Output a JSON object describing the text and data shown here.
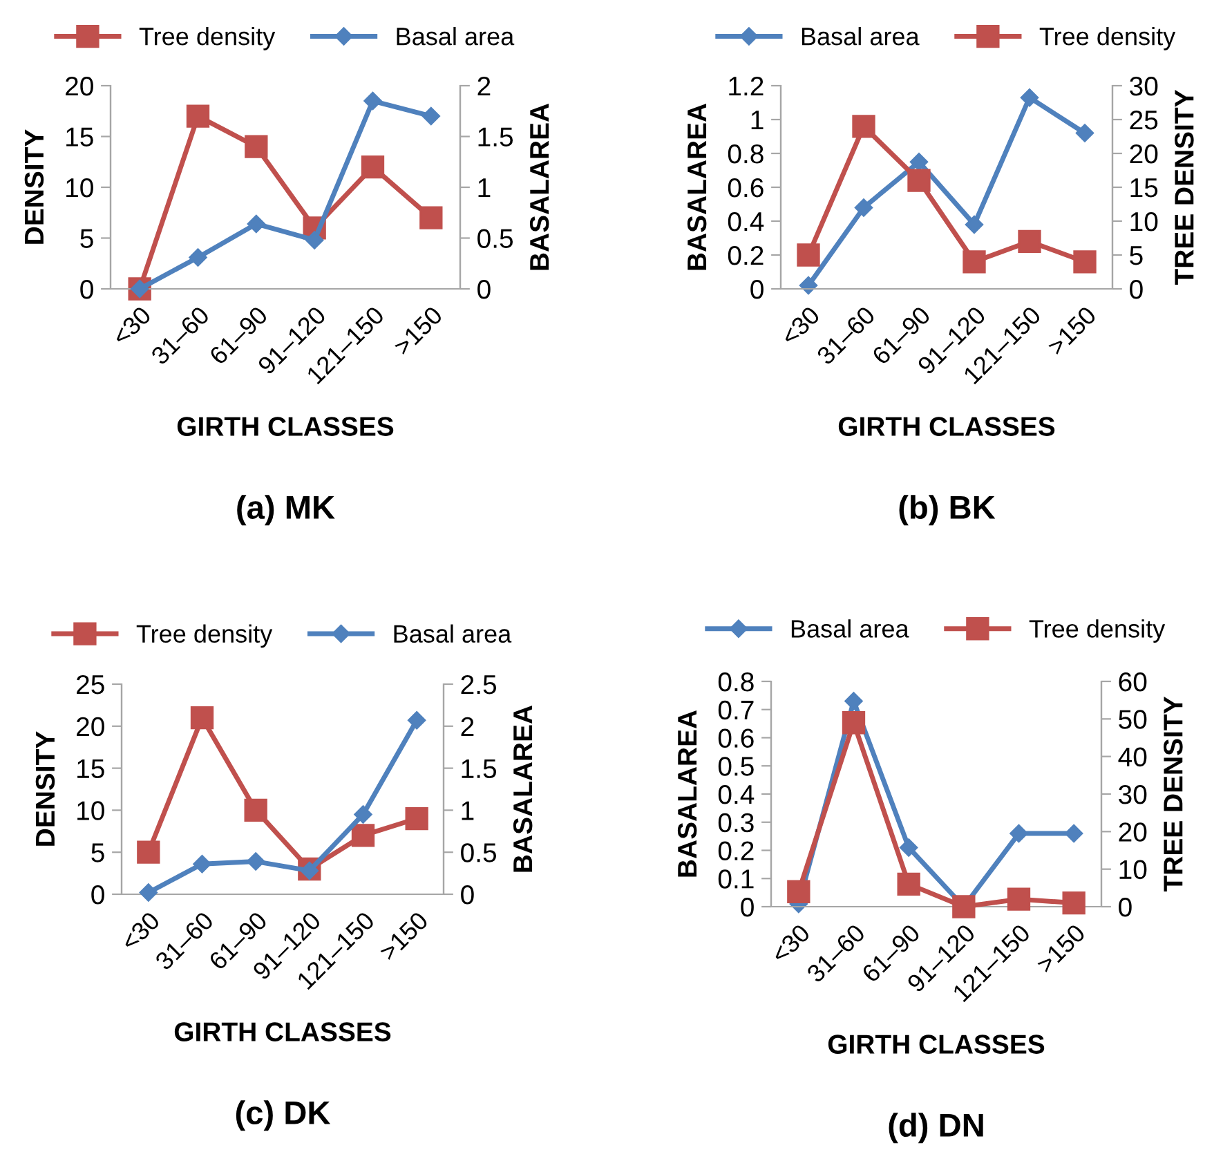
{
  "chart_data": [
    {
      "type": "line",
      "title": "(a) MK",
      "xlabel": "GIRTH CLASSES",
      "ylabel": "DENSITY",
      "y2label": "BASALAREA",
      "categories": [
        "<30",
        "31–60",
        "61–90",
        "91–120",
        "121–150",
        ">150"
      ],
      "ylim": [
        0,
        20
      ],
      "yticks": [
        0,
        5,
        10,
        15,
        20
      ],
      "y2lim": [
        0,
        2
      ],
      "y2ticks": [
        0,
        0.5,
        1,
        1.5,
        2
      ],
      "legend": "top",
      "grid": false,
      "series": [
        {
          "name": "Tree density",
          "color": "#c0504d",
          "marker": "square",
          "values": [
            0,
            17,
            14,
            6,
            12,
            7
          ]
        },
        {
          "name": "Basal area",
          "color": "#4f81bd",
          "marker": "diamond",
          "axis": "y2",
          "values": [
            0,
            0.31,
            0.64,
            0.48,
            1.85,
            1.7
          ]
        }
      ]
    },
    {
      "type": "line",
      "title": "(b) BK",
      "xlabel": "GIRTH CLASSES",
      "ylabel": "BASALAREA",
      "y2label": "TREE DENSITY",
      "categories": [
        "<30",
        "31–60",
        "61–90",
        "91–120",
        "121–150",
        ">150"
      ],
      "ylim": [
        0,
        1.2
      ],
      "yticks": [
        0,
        0.2,
        0.4,
        0.6,
        0.8,
        1,
        1.2
      ],
      "y2lim": [
        0,
        30
      ],
      "y2ticks": [
        0,
        5,
        10,
        15,
        20,
        25,
        30
      ],
      "legend": "top",
      "grid": false,
      "series": [
        {
          "name": "Basal area",
          "color": "#4f81bd",
          "marker": "diamond",
          "values": [
            0.02,
            0.48,
            0.75,
            0.38,
            1.13,
            0.92
          ]
        },
        {
          "name": "Tree density",
          "color": "#c0504d",
          "marker": "square",
          "axis": "y2",
          "values": [
            5,
            24,
            16,
            4,
            7,
            4
          ]
        }
      ]
    },
    {
      "type": "line",
      "title": "(c) DK",
      "xlabel": "GIRTH CLASSES",
      "ylabel": "DENSITY",
      "y2label": "BASALAREA",
      "categories": [
        "<30",
        "31–60",
        "61–90",
        "91–120",
        "121–150",
        ">150"
      ],
      "ylim": [
        0,
        25
      ],
      "yticks": [
        0,
        5,
        10,
        15,
        20,
        25
      ],
      "y2lim": [
        0,
        2.5
      ],
      "y2ticks": [
        0,
        0.5,
        1,
        1.5,
        2,
        2.5
      ],
      "legend": "top",
      "grid": false,
      "series": [
        {
          "name": "Tree density",
          "color": "#c0504d",
          "marker": "square",
          "values": [
            5,
            21,
            10,
            3,
            7,
            9
          ]
        },
        {
          "name": "Basal area",
          "color": "#4f81bd",
          "marker": "diamond",
          "axis": "y2",
          "values": [
            0.02,
            0.36,
            0.39,
            0.28,
            0.95,
            2.07
          ]
        }
      ]
    },
    {
      "type": "line",
      "title": "(d) DN",
      "xlabel": "GIRTH CLASSES",
      "ylabel": "BASALAREA",
      "y2label": "TREE DENSITY",
      "categories": [
        "<30",
        "31–60",
        "61–90",
        "91–120",
        "121–150",
        ">150"
      ],
      "ylim": [
        0,
        0.8
      ],
      "yticks": [
        0,
        0.1,
        0.2,
        0.3,
        0.4,
        0.5,
        0.6,
        0.7,
        0.8
      ],
      "y2lim": [
        0,
        60
      ],
      "y2ticks": [
        0,
        10,
        20,
        30,
        40,
        50,
        60
      ],
      "legend": "top",
      "grid": false,
      "series": [
        {
          "name": "Basal area",
          "color": "#4f81bd",
          "marker": "diamond",
          "values": [
            0.01,
            0.73,
            0.21,
            0.0,
            0.26,
            0.26
          ]
        },
        {
          "name": "Tree density",
          "color": "#c0504d",
          "marker": "square",
          "axis": "y2",
          "values": [
            4,
            49,
            6,
            0,
            2,
            1
          ]
        }
      ]
    }
  ]
}
